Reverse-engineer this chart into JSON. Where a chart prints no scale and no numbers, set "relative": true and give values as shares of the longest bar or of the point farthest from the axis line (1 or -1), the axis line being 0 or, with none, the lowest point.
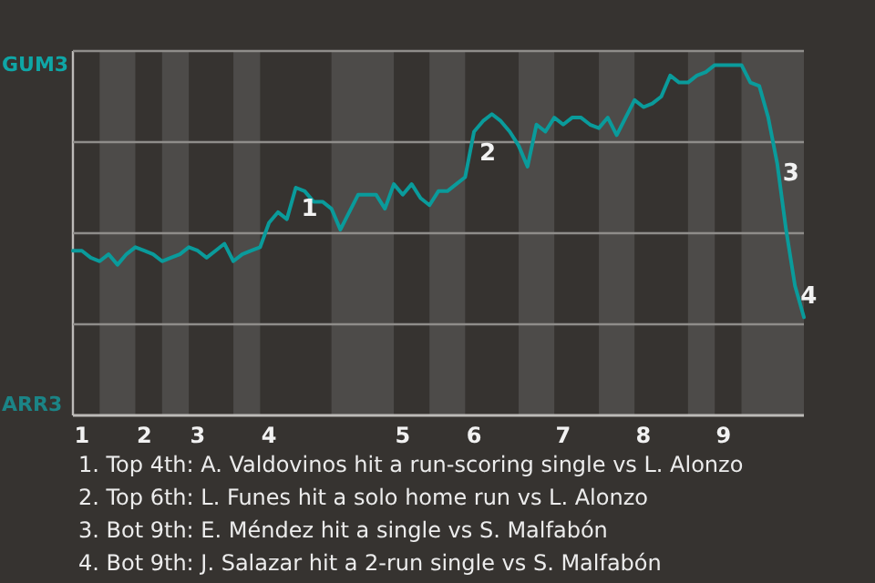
{
  "chart_data": {
    "type": "line",
    "relative": true,
    "categories": [
      null,
      "1",
      null,
      null,
      null,
      null,
      null,
      null,
      "2",
      null,
      null,
      null,
      null,
      null,
      "3",
      null,
      null,
      null,
      null,
      null,
      null,
      null,
      "4",
      null,
      null,
      null,
      null,
      null,
      null,
      null,
      null,
      null,
      null,
      null,
      null,
      null,
      null,
      "5",
      null,
      null,
      null,
      null,
      null,
      null,
      null,
      "6",
      null,
      null,
      null,
      null,
      null,
      null,
      null,
      null,
      null,
      "7",
      null,
      null,
      null,
      null,
      null,
      null,
      null,
      null,
      "8",
      null,
      null,
      null,
      null,
      null,
      null,
      null,
      null,
      "9",
      null,
      null,
      null,
      null,
      null,
      null,
      null,
      null,
      null
    ],
    "ref_lines": [
      {
        "axis": "y",
        "value": 1.04,
        "label": null,
        "color": "#8f8d8a"
      },
      {
        "axis": "y",
        "value": 0.78,
        "label": null,
        "color": "#8f8d8a"
      },
      {
        "axis": "y",
        "value": 0.52,
        "label": null,
        "color": "#8f8d8a"
      },
      {
        "axis": "y",
        "value": 0.26,
        "label": null,
        "color": "#8f8d8a"
      }
    ],
    "series": [
      {
        "color": "#0a9b9b",
        "values": [
          0.47,
          0.47,
          0.45,
          0.44,
          0.46,
          0.43,
          0.46,
          0.48,
          0.47,
          0.46,
          0.44,
          0.45,
          0.46,
          0.48,
          0.47,
          0.45,
          0.47,
          0.49,
          0.44,
          0.46,
          0.47,
          0.48,
          0.55,
          0.58,
          0.56,
          0.65,
          0.64,
          0.61,
          0.61,
          0.59,
          0.53,
          0.58,
          0.63,
          0.63,
          0.63,
          0.59,
          0.66,
          0.63,
          0.66,
          0.62,
          0.6,
          0.64,
          0.64,
          0.66,
          0.68,
          0.81,
          0.84,
          0.86,
          0.84,
          0.81,
          0.77,
          0.71,
          0.83,
          0.81,
          0.85,
          0.83,
          0.85,
          0.85,
          0.83,
          0.82,
          0.85,
          0.8,
          0.85,
          0.9,
          0.88,
          0.89,
          0.91,
          0.97,
          0.95,
          0.95,
          0.97,
          0.98,
          1,
          1,
          1,
          1,
          0.95,
          0.94,
          0.85,
          0.72,
          0.53,
          0.37,
          0.28
        ]
      }
    ],
    "annotations": [
      {
        "text": "1",
        "y": 0.65
      },
      {
        "text": "2",
        "y": 0.81
      },
      "3",
      "4",
      "GUM3",
      "ARR3",
      "1. Top 4th: A. Valdovinos hit a run-scoring single vs L. Alonzo",
      "2. Top 6th: L. Funes hit a solo home run vs L. Alonzo",
      "3. Bot 9th: E. Méndez hit a single vs S. Malfabón",
      "4. Bot 9th: J. Salazar hit a 2-run single vs S. Malfabón"
    ]
  }
}
